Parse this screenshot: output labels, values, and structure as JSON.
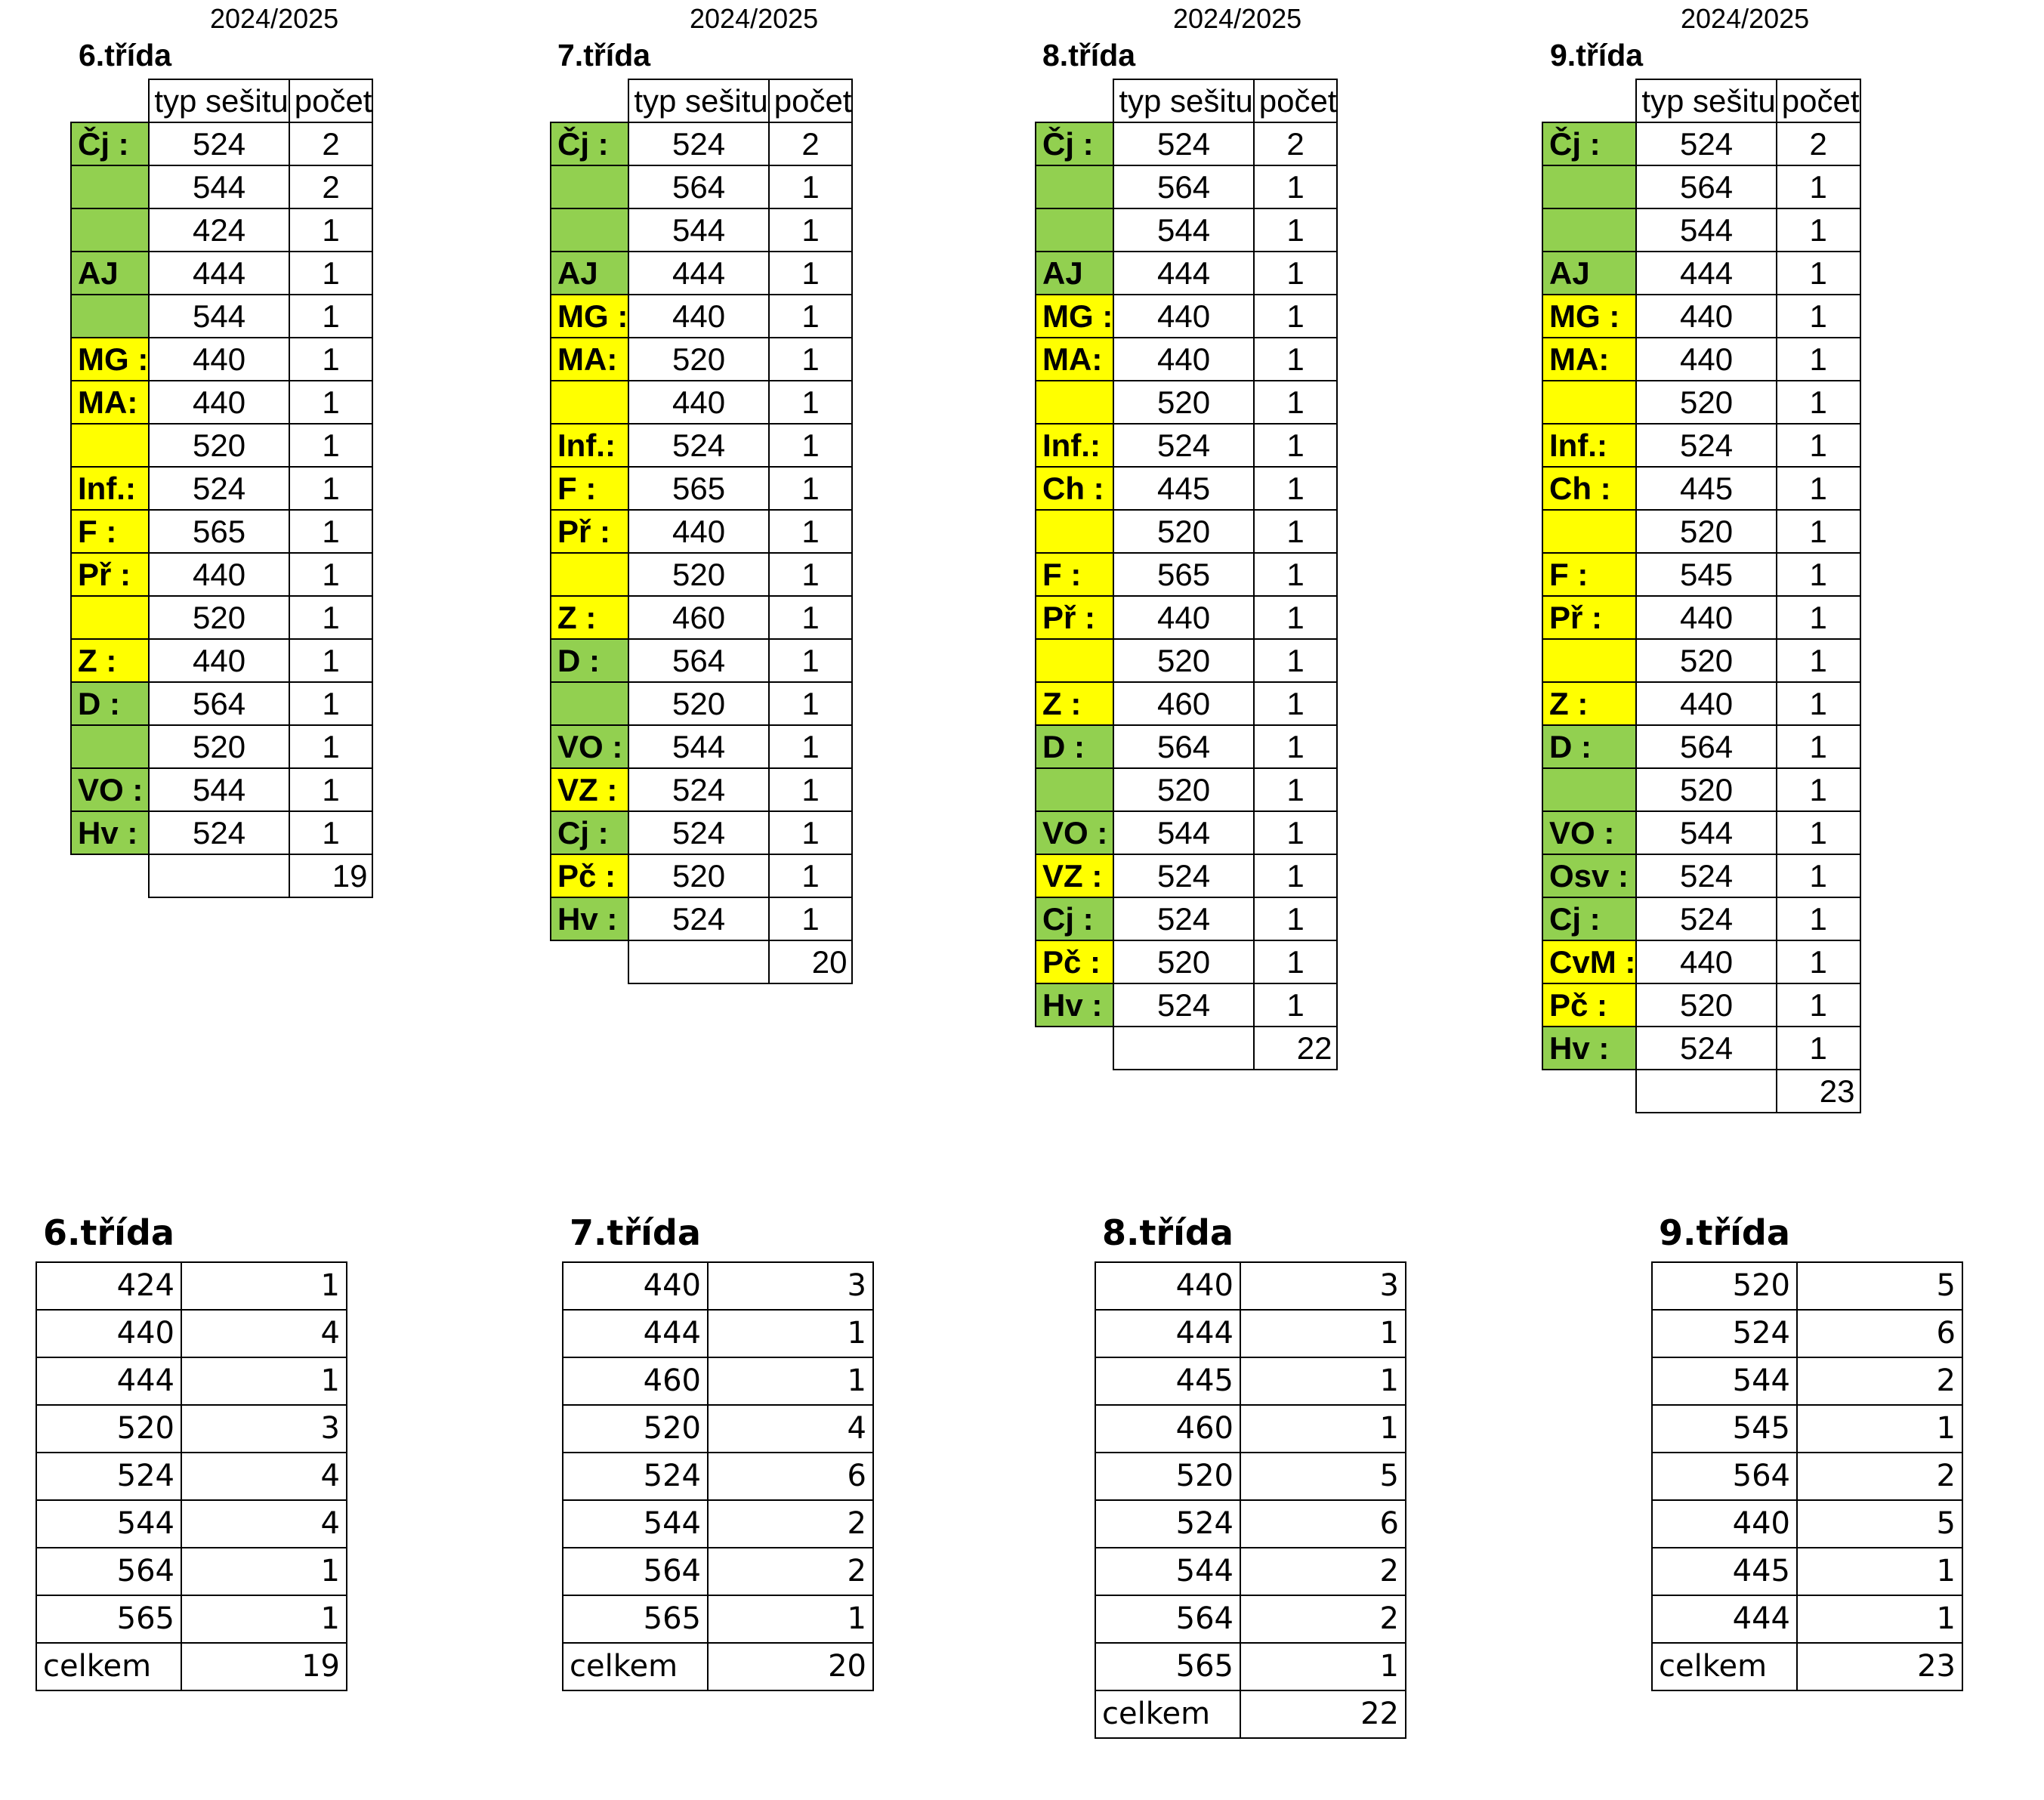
{
  "top_tables": [
    {
      "year": "2024/2025",
      "class_title": "6.třída",
      "header": {
        "type": "typ sešitu",
        "count": "počet"
      },
      "rows": [
        {
          "subject": "Čj :",
          "color": "green",
          "type": "524",
          "count": "2"
        },
        {
          "subject": "",
          "color": "green",
          "type": "544",
          "count": "2"
        },
        {
          "subject": "",
          "color": "green",
          "type": "424",
          "count": "1"
        },
        {
          "subject": "AJ",
          "color": "green",
          "type": "444",
          "count": "1"
        },
        {
          "subject": "",
          "color": "green",
          "type": "544",
          "count": "1"
        },
        {
          "subject": "MG :",
          "color": "yellow",
          "type": "440",
          "count": "1"
        },
        {
          "subject": "MA:",
          "color": "yellow",
          "type": "440",
          "count": "1"
        },
        {
          "subject": "",
          "color": "yellow",
          "type": "520",
          "count": "1"
        },
        {
          "subject": "Inf.:",
          "color": "yellow",
          "type": "524",
          "count": "1"
        },
        {
          "subject": "F :",
          "color": "yellow",
          "type": "565",
          "count": "1"
        },
        {
          "subject": "Př :",
          "color": "yellow",
          "type": "440",
          "count": "1"
        },
        {
          "subject": "",
          "color": "yellow",
          "type": "520",
          "count": "1"
        },
        {
          "subject": "Z :",
          "color": "yellow",
          "type": "440",
          "count": "1"
        },
        {
          "subject": "D :",
          "color": "green",
          "type": "564",
          "count": "1"
        },
        {
          "subject": "",
          "color": "green",
          "type": "520",
          "count": "1"
        },
        {
          "subject": "VO :",
          "color": "green",
          "type": "544",
          "count": "1"
        },
        {
          "subject": "Hv :",
          "color": "green",
          "type": "524",
          "count": "1"
        }
      ],
      "total": "19"
    },
    {
      "year": "2024/2025",
      "class_title": "7.třída",
      "header": {
        "type": "typ sešitu",
        "count": "počet"
      },
      "rows": [
        {
          "subject": "Čj :",
          "color": "green",
          "type": "524",
          "count": "2"
        },
        {
          "subject": "",
          "color": "green",
          "type": "564",
          "count": "1"
        },
        {
          "subject": "",
          "color": "green",
          "type": "544",
          "count": "1"
        },
        {
          "subject": "AJ",
          "color": "green",
          "type": "444",
          "count": "1"
        },
        {
          "subject": "MG :",
          "color": "yellow",
          "type": "440",
          "count": "1"
        },
        {
          "subject": "MA:",
          "color": "yellow",
          "type": "520",
          "count": "1"
        },
        {
          "subject": "",
          "color": "yellow",
          "type": "440",
          "count": "1"
        },
        {
          "subject": "Inf.:",
          "color": "yellow",
          "type": "524",
          "count": "1"
        },
        {
          "subject": "F :",
          "color": "yellow",
          "type": "565",
          "count": "1"
        },
        {
          "subject": "Př :",
          "color": "yellow",
          "type": "440",
          "count": "1"
        },
        {
          "subject": "",
          "color": "yellow",
          "type": "520",
          "count": "1"
        },
        {
          "subject": "Z :",
          "color": "yellow",
          "type": "460",
          "count": "1"
        },
        {
          "subject": "D :",
          "color": "green",
          "type": "564",
          "count": "1"
        },
        {
          "subject": "",
          "color": "green",
          "type": "520",
          "count": "1"
        },
        {
          "subject": "VO :",
          "color": "green",
          "type": "544",
          "count": "1"
        },
        {
          "subject": "VZ :",
          "color": "yellow",
          "type": "524",
          "count": "1"
        },
        {
          "subject": "Cj :",
          "color": "green",
          "type": "524",
          "count": "1"
        },
        {
          "subject": "Pč :",
          "color": "yellow",
          "type": "520",
          "count": "1"
        },
        {
          "subject": "Hv :",
          "color": "green",
          "type": "524",
          "count": "1"
        }
      ],
      "total": "20"
    },
    {
      "year": "2024/2025",
      "class_title": "8.třída",
      "header": {
        "type": "typ sešitu",
        "count": "počet"
      },
      "rows": [
        {
          "subject": "Čj :",
          "color": "green",
          "type": "524",
          "count": "2"
        },
        {
          "subject": "",
          "color": "green",
          "type": "564",
          "count": "1"
        },
        {
          "subject": "",
          "color": "green",
          "type": "544",
          "count": "1"
        },
        {
          "subject": "AJ",
          "color": "green",
          "type": "444",
          "count": "1"
        },
        {
          "subject": "MG :",
          "color": "yellow",
          "type": "440",
          "count": "1"
        },
        {
          "subject": "MA:",
          "color": "yellow",
          "type": "440",
          "count": "1"
        },
        {
          "subject": "",
          "color": "yellow",
          "type": "520",
          "count": "1"
        },
        {
          "subject": "Inf.:",
          "color": "yellow",
          "type": "524",
          "count": "1"
        },
        {
          "subject": "Ch :",
          "color": "yellow",
          "type": "445",
          "count": "1"
        },
        {
          "subject": "",
          "color": "yellow",
          "type": "520",
          "count": "1"
        },
        {
          "subject": "F :",
          "color": "yellow",
          "type": "565",
          "count": "1"
        },
        {
          "subject": "Př :",
          "color": "yellow",
          "type": "440",
          "count": "1"
        },
        {
          "subject": "",
          "color": "yellow",
          "type": "520",
          "count": "1"
        },
        {
          "subject": "Z :",
          "color": "yellow",
          "type": "460",
          "count": "1"
        },
        {
          "subject": "D :",
          "color": "green",
          "type": "564",
          "count": "1"
        },
        {
          "subject": "",
          "color": "green",
          "type": "520",
          "count": "1"
        },
        {
          "subject": "VO :",
          "color": "green",
          "type": "544",
          "count": "1"
        },
        {
          "subject": "VZ :",
          "color": "yellow",
          "type": "524",
          "count": "1"
        },
        {
          "subject": "Cj :",
          "color": "green",
          "type": "524",
          "count": "1"
        },
        {
          "subject": "Pč :",
          "color": "yellow",
          "type": "520",
          "count": "1"
        },
        {
          "subject": "Hv :",
          "color": "green",
          "type": "524",
          "count": "1"
        }
      ],
      "total": "22"
    },
    {
      "year": "2024/2025",
      "class_title": "9.třída",
      "header": {
        "type": "typ sešitu",
        "count": "počet"
      },
      "rows": [
        {
          "subject": "Čj :",
          "color": "green",
          "type": "524",
          "count": "2"
        },
        {
          "subject": "",
          "color": "green",
          "type": "564",
          "count": "1"
        },
        {
          "subject": "",
          "color": "green",
          "type": "544",
          "count": "1"
        },
        {
          "subject": "AJ",
          "color": "green",
          "type": "444",
          "count": "1"
        },
        {
          "subject": "MG :",
          "color": "yellow",
          "type": "440",
          "count": "1"
        },
        {
          "subject": "MA:",
          "color": "yellow",
          "type": "440",
          "count": "1"
        },
        {
          "subject": "",
          "color": "yellow",
          "type": "520",
          "count": "1"
        },
        {
          "subject": "Inf.:",
          "color": "yellow",
          "type": "524",
          "count": "1"
        },
        {
          "subject": "Ch :",
          "color": "yellow",
          "type": "445",
          "count": "1"
        },
        {
          "subject": "",
          "color": "yellow",
          "type": "520",
          "count": "1"
        },
        {
          "subject": "F :",
          "color": "yellow",
          "type": "545",
          "count": "1"
        },
        {
          "subject": "Př :",
          "color": "yellow",
          "type": "440",
          "count": "1"
        },
        {
          "subject": "",
          "color": "yellow",
          "type": "520",
          "count": "1"
        },
        {
          "subject": "Z :",
          "color": "yellow",
          "type": "440",
          "count": "1"
        },
        {
          "subject": "D :",
          "color": "green",
          "type": "564",
          "count": "1"
        },
        {
          "subject": "",
          "color": "green",
          "type": "520",
          "count": "1"
        },
        {
          "subject": "VO :",
          "color": "green",
          "type": "544",
          "count": "1"
        },
        {
          "subject": "Osv :",
          "color": "green",
          "type": "524",
          "count": "1"
        },
        {
          "subject": "Cj :",
          "color": "green",
          "type": "524",
          "count": "1"
        },
        {
          "subject": "CvM :",
          "color": "yellow",
          "type": "440",
          "count": "1"
        },
        {
          "subject": "Pč :",
          "color": "yellow",
          "type": "520",
          "count": "1"
        },
        {
          "subject": "Hv :",
          "color": "green",
          "type": "524",
          "count": "1"
        }
      ],
      "total": "23"
    }
  ],
  "summary_tables": [
    {
      "class_title": "6.třída",
      "rows": [
        {
          "type": "424",
          "count": "1"
        },
        {
          "type": "440",
          "count": "4"
        },
        {
          "type": "444",
          "count": "1"
        },
        {
          "type": "520",
          "count": "3"
        },
        {
          "type": "524",
          "count": "4"
        },
        {
          "type": "544",
          "count": "4"
        },
        {
          "type": "564",
          "count": "1"
        },
        {
          "type": "565",
          "count": "1"
        }
      ],
      "total_label": "celkem",
      "total": "19"
    },
    {
      "class_title": "7.třída",
      "rows": [
        {
          "type": "440",
          "count": "3"
        },
        {
          "type": "444",
          "count": "1"
        },
        {
          "type": "460",
          "count": "1"
        },
        {
          "type": "520",
          "count": "4"
        },
        {
          "type": "524",
          "count": "6"
        },
        {
          "type": "544",
          "count": "2"
        },
        {
          "type": "564",
          "count": "2"
        },
        {
          "type": "565",
          "count": "1"
        }
      ],
      "total_label": "celkem",
      "total": "20"
    },
    {
      "class_title": "8.třída",
      "rows": [
        {
          "type": "440",
          "count": "3"
        },
        {
          "type": "444",
          "count": "1"
        },
        {
          "type": "445",
          "count": "1"
        },
        {
          "type": "460",
          "count": "1"
        },
        {
          "type": "520",
          "count": "5"
        },
        {
          "type": "524",
          "count": "6"
        },
        {
          "type": "544",
          "count": "2"
        },
        {
          "type": "564",
          "count": "2"
        },
        {
          "type": "565",
          "count": "1"
        }
      ],
      "total_label": "celkem",
      "total": "22"
    },
    {
      "class_title": "9.třída",
      "rows": [
        {
          "type": "520",
          "count": "5"
        },
        {
          "type": "524",
          "count": "6"
        },
        {
          "type": "544",
          "count": "2"
        },
        {
          "type": "545",
          "count": "1"
        },
        {
          "type": "564",
          "count": "2"
        },
        {
          "type": "440",
          "count": "5"
        },
        {
          "type": "445",
          "count": "1"
        },
        {
          "type": "444",
          "count": "1"
        }
      ],
      "total_label": "celkem",
      "total": "23"
    }
  ]
}
